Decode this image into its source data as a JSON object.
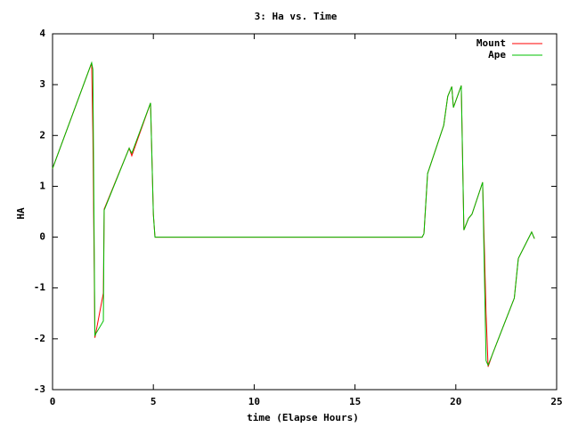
{
  "chart_data": {
    "type": "line",
    "title": "3: Ha vs. Time",
    "xlabel": "time (Elapse Hours)",
    "ylabel": "HA",
    "x": [
      0,
      1.94,
      2.0,
      2.1,
      2.52,
      2.56,
      3.8,
      3.93,
      4.86,
      5.0,
      5.08,
      18.33,
      18.42,
      18.6,
      19.4,
      19.6,
      19.8,
      19.88,
      20.27,
      20.4,
      20.63,
      20.8,
      21.33,
      21.5,
      21.6,
      21.82,
      22.26,
      22.9,
      23.1,
      23.76,
      23.9
    ],
    "series": [
      {
        "name": "Mount",
        "color": "#ff0000",
        "values": [
          1.35,
          3.43,
          2.05,
          -1.98,
          -1.1,
          0.55,
          1.75,
          1.6,
          2.64,
          0.45,
          0,
          0,
          0.07,
          1.25,
          2.2,
          2.77,
          2.96,
          2.55,
          2.98,
          0.14,
          0.37,
          0.45,
          1.08,
          -1.5,
          -2.55,
          -2.3,
          -1.85,
          -1.2,
          -0.42,
          0.1,
          -0.03
        ]
      },
      {
        "name": "Ape",
        "color": "#00c000",
        "values": [
          1.35,
          3.43,
          3.3,
          -1.93,
          -1.65,
          0.53,
          1.75,
          1.65,
          2.64,
          0.45,
          0,
          0,
          0.07,
          1.25,
          2.2,
          2.77,
          2.96,
          2.55,
          2.98,
          0.14,
          0.37,
          0.45,
          1.08,
          -2.43,
          -2.52,
          -2.3,
          -1.85,
          -1.2,
          -0.42,
          0.1,
          -0.03
        ]
      }
    ],
    "xlim": [
      0,
      25
    ],
    "xticks": [
      0,
      5,
      10,
      15,
      20,
      25
    ],
    "ylim": [
      -3,
      4
    ],
    "yticks": [
      -3,
      -2,
      -1,
      0,
      1,
      2,
      3,
      4
    ],
    "grid": false,
    "legend": "top-right"
  }
}
